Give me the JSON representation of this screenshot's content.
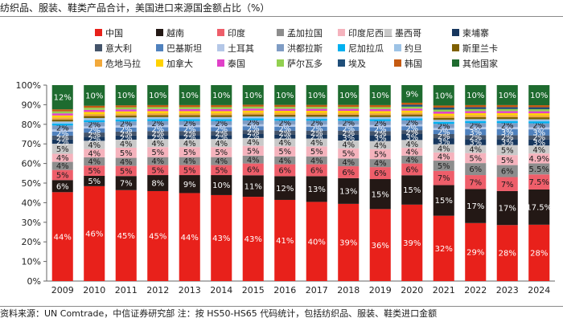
{
  "chart_data": {
    "type": "bar",
    "stacked": true,
    "title": "纺织品、服装、鞋类产品合计，美国进口来源国金额占比（%）",
    "source": "资料来源：UN Comtrade，中信证券研究部   注：按 HS50-HS65 代码统计，包括纺织品、服装、鞋类进口金额",
    "categories": [
      "2009",
      "2010",
      "2011",
      "2012",
      "2013",
      "2014",
      "2015",
      "2016",
      "2017",
      "2018",
      "2019",
      "2020",
      "2021",
      "2022",
      "2023",
      "2024"
    ],
    "ylim": [
      0,
      100
    ],
    "yticks": [
      "0%",
      "10%",
      "20%",
      "30%",
      "40%",
      "50%",
      "60%",
      "70%",
      "80%",
      "90%",
      "100%"
    ],
    "legend_position": "top",
    "series": [
      {
        "name": "中国",
        "color": "#e8211b",
        "values": [
          44,
          46,
          45,
          45,
          44,
          43,
          43,
          41,
          40,
          39,
          36,
          39,
          32,
          29,
          28,
          28
        ],
        "labels": [
          "44%",
          "46%",
          "45%",
          "45%",
          "44%",
          "43%",
          "43%",
          "41%",
          "40%",
          "39%",
          "36%",
          "39%",
          "32%",
          "29%",
          "28%",
          "28%"
        ]
      },
      {
        "name": "越南",
        "color": "#231815",
        "values": [
          6,
          5,
          7,
          8,
          9,
          10,
          11,
          12,
          13,
          13,
          15,
          15,
          15,
          17,
          17,
          17.5
        ],
        "labels": [
          "6%",
          "5%",
          "7%",
          "8%",
          "9%",
          "10%",
          "11%",
          "12%",
          "13%",
          "13%",
          "15%",
          "15%",
          "15%",
          "17%",
          "17%",
          "17.5%"
        ]
      },
      {
        "name": "印度",
        "color": "#ee5e6a",
        "values": [
          5,
          5,
          5,
          5,
          5,
          5,
          6,
          6,
          6,
          6,
          6,
          6,
          7,
          7,
          7,
          7.5
        ],
        "labels": [
          "5%",
          "5%",
          "5%",
          "5%",
          "5%",
          "5%",
          "6%",
          "6%",
          "6%",
          "6%",
          "6%",
          "6%",
          "7%",
          "7%",
          "7%",
          "7.5%"
        ]
      },
      {
        "name": "孟加拉国",
        "color": "#8d8d8d",
        "values": [
          4,
          4,
          4,
          4,
          4,
          4,
          4,
          4,
          4,
          4,
          4,
          4,
          5,
          6,
          6,
          5.5
        ],
        "labels": [
          "4%",
          "4%",
          "4%",
          "4%",
          "4%",
          "4%",
          "4%",
          "4%",
          "4%",
          "4%",
          "4%",
          "4%",
          "5%",
          "6%",
          "6%",
          "5.5%"
        ]
      },
      {
        "name": "印度尼西亚",
        "color": "#f5b3bd",
        "values": [
          4,
          4,
          5,
          5,
          5,
          5,
          5,
          5,
          5,
          5,
          5,
          4,
          4,
          5,
          5,
          4.9
        ],
        "labels": [
          "4%",
          "4%",
          "5%",
          "5%",
          "5%",
          "5%",
          "5%",
          "5%",
          "5%",
          "5%",
          "5%",
          "4%",
          "4%",
          "5%",
          "5%",
          "4.9%"
        ]
      },
      {
        "name": "墨西哥",
        "color": "#c9c9c9",
        "values": [
          5,
          4,
          4,
          4,
          4,
          4,
          4,
          4,
          4,
          4,
          4,
          4,
          4,
          4,
          5,
          4
        ],
        "labels": [
          "5%",
          "4%",
          "4%",
          "4%",
          "4%",
          "4%",
          "4%",
          "4%",
          "4%",
          "4%",
          "4%",
          "4%",
          "4%",
          "4%",
          "5%",
          "4%"
        ]
      },
      {
        "name": "柬埔寨",
        "color": "#17375e",
        "values": [
          2,
          2,
          2,
          2,
          2,
          2,
          2,
          2,
          2,
          3,
          3,
          3,
          3,
          3,
          3,
          3
        ],
        "labels": [
          "2%",
          "2%",
          "2%",
          "2%",
          "2%",
          "2%",
          "2%",
          "2%",
          "2%",
          "3%",
          "3%",
          "3%",
          "3%",
          "3%",
          "3%",
          "3%"
        ]
      },
      {
        "name": "意大利",
        "color": "#44546a",
        "values": [
          2,
          2,
          2,
          2,
          2,
          2,
          2,
          2,
          2,
          2,
          2,
          2,
          2,
          2,
          2,
          2
        ],
        "labels": [
          "2%",
          "2%",
          "2%",
          "2%",
          "2%",
          "2%",
          "2%",
          "2%",
          "2%",
          "2%",
          "2%",
          "2%",
          "2%",
          "2%",
          "2%",
          "2%"
        ]
      },
      {
        "name": "巴基斯坦",
        "color": "#4f81bd",
        "values": [
          2,
          2,
          2,
          2,
          2,
          2,
          2,
          2,
          2,
          2,
          2,
          2,
          2,
          3,
          3,
          3
        ],
        "labels": [
          "2%",
          "2%",
          "2%",
          "2%",
          "2%",
          "2%",
          "2%",
          "2%",
          "2%",
          "2%",
          "2%",
          "2%",
          "2%",
          "3%",
          "3%",
          "3%"
        ]
      },
      {
        "name": "土耳其",
        "color": "#b4c7e7",
        "values": [
          1,
          1,
          1,
          1,
          1,
          1,
          1,
          1,
          1,
          1,
          1,
          1,
          1,
          1,
          1,
          1
        ],
        "labels": [
          "",
          "",
          "",
          "",
          "",
          "",
          "",
          "",
          "",
          "",
          "",
          "",
          "",
          "",
          "",
          ""
        ]
      },
      {
        "name": "洪都拉斯",
        "color": "#7f9cc4",
        "values": [
          2,
          2,
          2,
          2,
          2,
          2,
          2,
          2,
          2,
          2,
          2,
          2,
          2,
          2,
          2,
          2
        ],
        "labels": [
          "2%",
          "2%",
          "2%",
          "2%",
          "2%",
          "2%",
          "2%",
          "2%",
          "2%",
          "2%",
          "2%",
          "2%",
          "2%",
          "2%",
          "2%",
          "2%"
        ]
      },
      {
        "name": "尼加拉瓜",
        "color": "#00b0f0",
        "values": [
          1,
          1,
          1,
          1,
          1,
          1,
          1,
          1,
          1,
          1,
          1,
          1,
          1,
          1,
          1,
          1
        ],
        "labels": [
          "",
          "",
          "",
          "",
          "",
          "",
          "",
          "",
          "",
          "",
          "",
          "",
          "",
          "",
          "",
          ""
        ]
      },
      {
        "name": "约旦",
        "color": "#9dc3e6",
        "values": [
          1,
          1,
          1,
          1,
          1,
          1,
          1,
          1,
          1,
          1,
          1,
          1,
          1,
          1,
          1,
          1
        ],
        "labels": [
          "",
          "",
          "",
          "",
          "",
          "",
          "",
          "",
          "",
          "",
          "",
          "",
          "",
          "",
          "",
          ""
        ]
      },
      {
        "name": "斯里兰卡",
        "color": "#7f6000",
        "values": [
          1,
          1,
          1,
          1,
          1,
          1,
          1,
          1,
          1,
          1,
          1,
          1,
          1,
          1,
          1,
          1
        ],
        "labels": [
          "",
          "",
          "",
          "",
          "",
          "",
          "",
          "",
          "",
          "",
          "",
          "",
          "",
          "",
          "",
          ""
        ]
      },
      {
        "name": "危地马拉",
        "color": "#f2a93b",
        "values": [
          1,
          1,
          1,
          1,
          1,
          1,
          1,
          1,
          1,
          1,
          1,
          1,
          1,
          1,
          1,
          1
        ],
        "labels": [
          "",
          "",
          "",
          "",
          "",
          "",
          "",
          "",
          "",
          "",
          "",
          "",
          "",
          "",
          "",
          ""
        ]
      },
      {
        "name": "加拿大",
        "color": "#ffd200",
        "values": [
          1,
          1,
          1,
          1,
          1,
          1,
          1,
          1,
          1,
          1,
          1,
          1,
          1,
          1,
          1,
          1
        ],
        "labels": [
          "",
          "",
          "",
          "",
          "",
          "",
          "",
          "",
          "",
          "",
          "",
          "",
          "",
          "",
          "",
          ""
        ]
      },
      {
        "name": "泰国",
        "color": "#e040c8",
        "values": [
          1,
          1,
          1,
          1,
          1,
          1,
          1,
          1,
          1,
          1,
          1,
          1,
          1,
          1,
          1,
          1
        ],
        "labels": [
          "",
          "",
          "",
          "",
          "",
          "",
          "",
          "",
          "",
          "",
          "",
          "",
          "",
          "",
          "",
          ""
        ]
      },
      {
        "name": "萨尔瓦多",
        "color": "#92d050",
        "values": [
          1,
          1,
          1,
          1,
          1,
          1,
          1,
          1,
          1,
          1,
          1,
          1,
          1,
          1,
          1,
          1
        ],
        "labels": [
          "",
          "",
          "",
          "",
          "",
          "",
          "",
          "",
          "",
          "",
          "",
          "",
          "",
          "",
          "",
          ""
        ]
      },
      {
        "name": "埃及",
        "color": "#1f4e79",
        "values": [
          0,
          0,
          0,
          0,
          0,
          0,
          0,
          0,
          0,
          0,
          0,
          1,
          1,
          1,
          1,
          1
        ],
        "labels": [
          "",
          "",
          "",
          "",
          "",
          "",
          "",
          "",
          "",
          "",
          "",
          "",
          "",
          "",
          "",
          ""
        ]
      },
      {
        "name": "韩国",
        "color": "#c55a11",
        "values": [
          1,
          1,
          1,
          1,
          1,
          1,
          1,
          1,
          1,
          1,
          1,
          1,
          1,
          1,
          1,
          1
        ],
        "labels": [
          "",
          "",
          "",
          "",
          "",
          "",
          "",
          "",
          "",
          "",
          "",
          "",
          "",
          "",
          "",
          ""
        ]
      },
      {
        "name": "其他国家",
        "color": "#1e6b2f",
        "values": [
          12,
          10,
          10,
          10,
          10,
          10,
          10,
          10,
          10,
          10,
          10,
          9,
          10,
          10,
          10,
          10
        ],
        "labels": [
          "12%",
          "10%",
          "10%",
          "10%",
          "10%",
          "10%",
          "10%",
          "10%",
          "10%",
          "10%",
          "10%",
          "9%",
          "10%",
          "10%",
          "10%",
          "10%"
        ]
      }
    ]
  }
}
